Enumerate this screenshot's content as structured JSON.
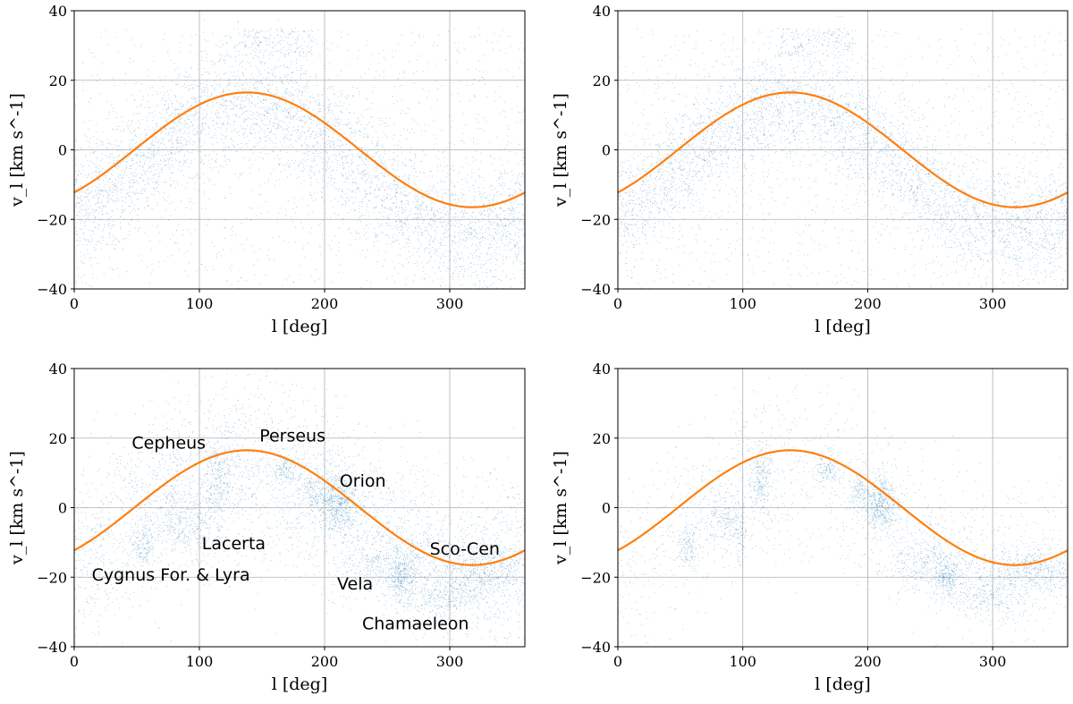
{
  "figure": {
    "point_color": "#1f77b4",
    "curve_color": "#ff7f0e",
    "grid_color": "#b0b0b0"
  },
  "chart_data": [
    {
      "type": "scatter",
      "panel": "top-left",
      "xlabel": "l [deg]",
      "ylabel": "v_l [km s^-1]",
      "xlim": [
        0,
        360
      ],
      "ylim": [
        -40,
        40
      ],
      "xticks": [
        0,
        100,
        200,
        300
      ],
      "yticks": [
        -40,
        -20,
        0,
        20,
        40
      ],
      "x_tick_labels": [
        "0",
        "100",
        "200",
        "300"
      ],
      "y_tick_labels": [
        "−40",
        "−20",
        "0",
        "20",
        "40"
      ],
      "grid": true,
      "curve": {
        "amplitude": 16.5,
        "peak_l": 138,
        "description": "v = 16.5 sin(l - 48)"
      },
      "distribution": {
        "style": "broad",
        "band_offset": -5,
        "band_amplitude": 18,
        "band_sigma": 9,
        "points": 5200
      },
      "clusters": [],
      "annotations": []
    },
    {
      "type": "scatter",
      "panel": "top-right",
      "xlabel": "l [deg]",
      "ylabel": "v_l [km s^-1]",
      "xlim": [
        0,
        360
      ],
      "ylim": [
        -40,
        40
      ],
      "xticks": [
        0,
        100,
        200,
        300
      ],
      "yticks": [
        -40,
        -20,
        0,
        20,
        40
      ],
      "x_tick_labels": [
        "0",
        "100",
        "200",
        "300"
      ],
      "y_tick_labels": [
        "−40",
        "−20",
        "0",
        "20",
        "40"
      ],
      "grid": true,
      "curve": {
        "amplitude": 16.5,
        "peak_l": 138,
        "description": "v = 16.5 sin(l - 48)"
      },
      "distribution": {
        "style": "broad",
        "band_offset": -5,
        "band_amplitude": 18,
        "band_sigma": 8,
        "points": 5200
      },
      "clusters": [],
      "annotations": []
    },
    {
      "type": "scatter",
      "panel": "bottom-left",
      "xlabel": "l [deg]",
      "ylabel": "v_l [km s^-1]",
      "xlim": [
        0,
        360
      ],
      "ylim": [
        -40,
        40
      ],
      "xticks": [
        0,
        100,
        200,
        300
      ],
      "yticks": [
        -40,
        -20,
        0,
        20,
        40
      ],
      "x_tick_labels": [
        "0",
        "100",
        "200",
        "300"
      ],
      "y_tick_labels": [
        "−40",
        "−20",
        "0",
        "20",
        "40"
      ],
      "grid": true,
      "curve": {
        "amplitude": 16.5,
        "peak_l": 138,
        "description": "v = 16.5 sin(l - 48)"
      },
      "distribution": {
        "style": "clustered",
        "background_points": 3600
      },
      "clusters": [
        {
          "l": 115,
          "v": 8,
          "dl": 6,
          "dv": 7,
          "n": 260
        },
        {
          "l": 85,
          "v": -3,
          "dl": 10,
          "dv": 5,
          "n": 240
        },
        {
          "l": 55,
          "v": -11,
          "dl": 5,
          "dv": 3,
          "n": 140
        },
        {
          "l": 100,
          "v": -8,
          "dl": 4,
          "dv": 4,
          "n": 70
        },
        {
          "l": 168,
          "v": 11,
          "dl": 5,
          "dv": 2,
          "n": 120
        },
        {
          "l": 210,
          "v": 1,
          "dl": 8,
          "dv": 4,
          "n": 520
        },
        {
          "l": 190,
          "v": 5,
          "dl": 4,
          "dv": 3,
          "n": 110
        },
        {
          "l": 250,
          "v": -16,
          "dl": 20,
          "dv": 4,
          "n": 420
        },
        {
          "l": 262,
          "v": -20,
          "dl": 5,
          "dv": 3,
          "n": 220
        },
        {
          "l": 295,
          "v": -26,
          "dl": 18,
          "dv": 3,
          "n": 260
        },
        {
          "l": 330,
          "v": -18,
          "dl": 22,
          "dv": 4,
          "n": 520
        }
      ],
      "annotations": [
        {
          "text": "Cepheus",
          "l": 46,
          "v": 17
        },
        {
          "text": "Perseus",
          "l": 148,
          "v": 19
        },
        {
          "text": "Orion",
          "l": 212,
          "v": 6
        },
        {
          "text": "Lacerta",
          "l": 102,
          "v": -12
        },
        {
          "text": "Sco-Cen",
          "l": 284,
          "v": -13.5
        },
        {
          "text": "Cygnus For. & Lyra",
          "l": 14,
          "v": -21
        },
        {
          "text": "Vela",
          "l": 210,
          "v": -23.5
        },
        {
          "text": "Chamaeleon",
          "l": 230,
          "v": -35
        }
      ]
    },
    {
      "type": "scatter",
      "panel": "bottom-right",
      "xlabel": "l [deg]",
      "ylabel": "v_l [km s^-1]",
      "xlim": [
        0,
        360
      ],
      "ylim": [
        -40,
        40
      ],
      "xticks": [
        0,
        100,
        200,
        300
      ],
      "yticks": [
        -40,
        -20,
        0,
        20,
        40
      ],
      "x_tick_labels": [
        "0",
        "100",
        "200",
        "300"
      ],
      "y_tick_labels": [
        "−40",
        "−20",
        "0",
        "20",
        "40"
      ],
      "grid": true,
      "curve": {
        "amplitude": 16.5,
        "peak_l": 138,
        "description": "v = 16.5 sin(l - 48)"
      },
      "distribution": {
        "style": "clustered",
        "background_points": 1500
      },
      "clusters": [
        {
          "l": 115,
          "v": 8,
          "dl": 5,
          "dv": 6,
          "n": 240
        },
        {
          "l": 85,
          "v": -3,
          "dl": 9,
          "dv": 5,
          "n": 220
        },
        {
          "l": 55,
          "v": -11,
          "dl": 5,
          "dv": 3,
          "n": 130
        },
        {
          "l": 98,
          "v": -8,
          "dl": 3,
          "dv": 4,
          "n": 60
        },
        {
          "l": 168,
          "v": 11,
          "dl": 5,
          "dv": 2,
          "n": 120
        },
        {
          "l": 210,
          "v": 1,
          "dl": 7,
          "dv": 4,
          "n": 480
        },
        {
          "l": 192,
          "v": 5,
          "dl": 3,
          "dv": 3,
          "n": 100
        },
        {
          "l": 250,
          "v": -16,
          "dl": 18,
          "dv": 4,
          "n": 380
        },
        {
          "l": 262,
          "v": -20,
          "dl": 5,
          "dv": 3,
          "n": 200
        },
        {
          "l": 295,
          "v": -26,
          "dl": 16,
          "dv": 3,
          "n": 240
        },
        {
          "l": 330,
          "v": -18,
          "dl": 20,
          "dv": 3,
          "n": 480
        }
      ],
      "annotations": []
    }
  ]
}
